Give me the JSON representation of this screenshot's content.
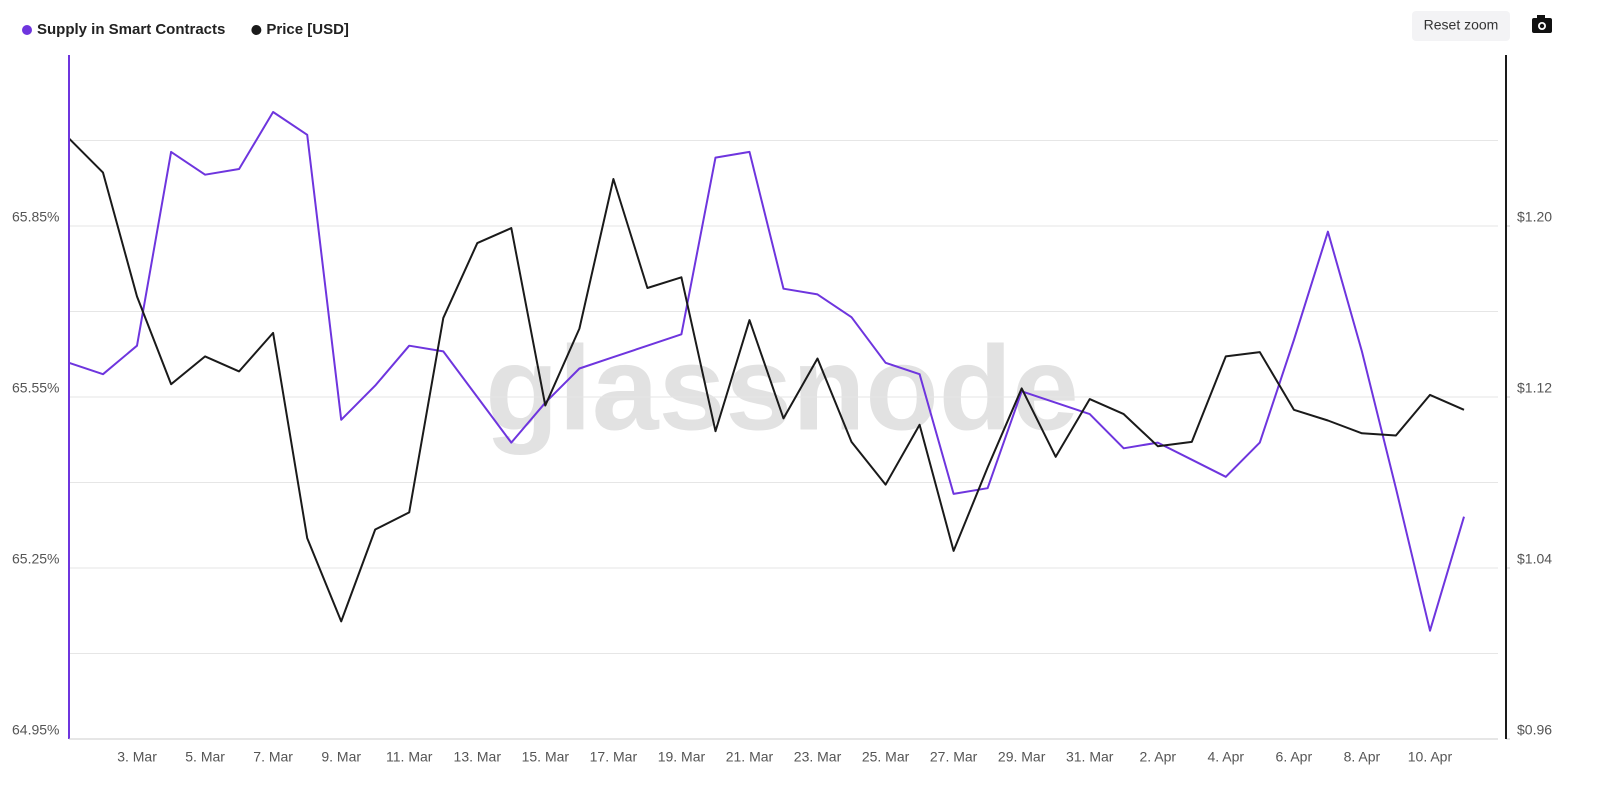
{
  "chart_data": {
    "type": "line",
    "watermark": "glassnode",
    "reset_button": "Reset zoom",
    "categories": [
      null,
      null,
      "3. Mar",
      null,
      "5. Mar",
      null,
      "7. Mar",
      null,
      "9. Mar",
      null,
      "11. Mar",
      null,
      "13. Mar",
      null,
      "15. Mar",
      null,
      "17. Mar",
      null,
      "19. Mar",
      null,
      "21. Mar",
      null,
      "23. Mar",
      null,
      "25. Mar",
      null,
      "27. Mar",
      null,
      "29. Mar",
      null,
      "31. Mar",
      null,
      "2. Apr",
      null,
      "4. Apr",
      null,
      "6. Apr",
      null,
      "8. Apr",
      null,
      "10. Apr",
      null
    ],
    "series": [
      {
        "name": "Supply in Smart Contracts",
        "color": "#6e35de",
        "axis": "y",
        "values": [
          65.61,
          65.59,
          65.64,
          65.98,
          65.94,
          65.95,
          66.05,
          66.01,
          65.51,
          65.57,
          65.64,
          65.63,
          65.55,
          65.47,
          65.54,
          65.6,
          65.62,
          65.64,
          65.66,
          65.97,
          65.98,
          65.74,
          65.73,
          65.69,
          65.61,
          65.59,
          65.38,
          65.39,
          65.56,
          65.54,
          65.52,
          65.46,
          65.47,
          65.44,
          65.41,
          65.47,
          65.65,
          65.84,
          65.63,
          65.39,
          65.14,
          65.34
        ]
      },
      {
        "name": "Price [USD]",
        "color": "#1a1a1a",
        "axis": "y2",
        "values": [
          1.241,
          1.225,
          1.167,
          1.126,
          1.139,
          1.132,
          1.15,
          1.054,
          1.015,
          1.058,
          1.066,
          1.157,
          1.192,
          1.199,
          1.116,
          1.152,
          1.222,
          1.171,
          1.176,
          1.104,
          1.156,
          1.11,
          1.138,
          1.099,
          1.079,
          1.107,
          1.048,
          1.087,
          1.124,
          1.092,
          1.119,
          1.112,
          1.097,
          1.099,
          1.139,
          1.141,
          1.114,
          1.109,
          1.103,
          1.102,
          1.121,
          1.114
        ]
      }
    ],
    "ylim": [
      64.95,
      66.15
    ],
    "yticks": [
      {
        "value": 64.95,
        "label": "64.95%"
      },
      {
        "value": 65.25,
        "label": "65.25%"
      },
      {
        "value": 65.55,
        "label": "65.55%"
      },
      {
        "value": 65.85,
        "label": "65.85%"
      }
    ],
    "minor_yticks": [
      65.1,
      65.4,
      65.7,
      66.0
    ],
    "y2lim": [
      0.96,
      1.28
    ],
    "y2ticks": [
      {
        "value": 0.96,
        "label": "$0.96"
      },
      {
        "value": 1.04,
        "label": "$1.04"
      },
      {
        "value": 1.12,
        "label": "$1.12"
      },
      {
        "value": 1.2,
        "label": "$1.20"
      }
    ],
    "grid": true,
    "legend": "top-left"
  }
}
